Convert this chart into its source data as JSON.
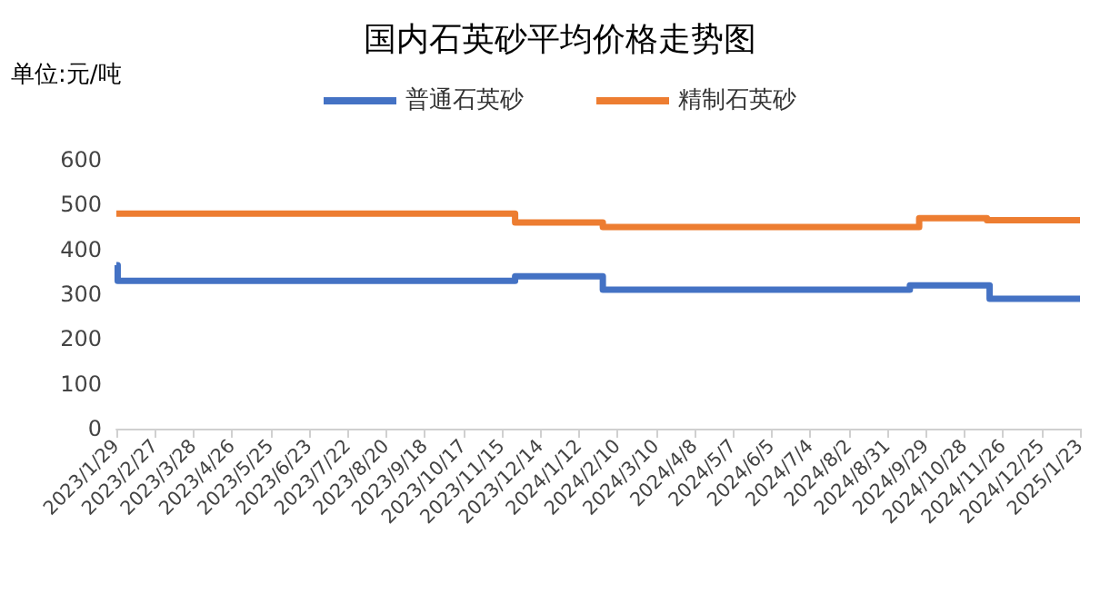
{
  "chart_data": {
    "type": "step",
    "title": "国内石英砂平均价格走势图",
    "ylabel": "单位:元/吨",
    "legend": "top",
    "grid": false,
    "marker": "none",
    "xlim": [
      "2023-01-29",
      "2025-01-23"
    ],
    "xticks": [
      {
        "value": "2023-01-29",
        "label": "2023/1/29"
      },
      {
        "value": "2023-02-27",
        "label": "2023/2/27"
      },
      {
        "value": "2023-03-28",
        "label": "2023/3/28"
      },
      {
        "value": "2023-04-26",
        "label": "2023/4/26"
      },
      {
        "value": "2023-05-25",
        "label": "2023/5/25"
      },
      {
        "value": "2023-06-23",
        "label": "2023/6/23"
      },
      {
        "value": "2023-07-22",
        "label": "2023/7/22"
      },
      {
        "value": "2023-08-20",
        "label": "2023/8/20"
      },
      {
        "value": "2023-09-18",
        "label": "2023/9/18"
      },
      {
        "value": "2023-10-17",
        "label": "2023/10/17"
      },
      {
        "value": "2023-11-15",
        "label": "2023/11/15"
      },
      {
        "value": "2023-12-14",
        "label": "2023/12/14"
      },
      {
        "value": "2024-01-12",
        "label": "2024/1/12"
      },
      {
        "value": "2024-02-10",
        "label": "2024/2/10"
      },
      {
        "value": "2024-03-10",
        "label": "2024/3/10"
      },
      {
        "value": "2024-04-08",
        "label": "2024/4/8"
      },
      {
        "value": "2024-05-07",
        "label": "2024/5/7"
      },
      {
        "value": "2024-06-05",
        "label": "2024/6/5"
      },
      {
        "value": "2024-07-04",
        "label": "2024/7/4"
      },
      {
        "value": "2024-08-02",
        "label": "2024/8/2"
      },
      {
        "value": "2024-08-31",
        "label": "2024/8/31"
      },
      {
        "value": "2024-09-29",
        "label": "2024/9/29"
      },
      {
        "value": "2024-10-28",
        "label": "2024/10/28"
      },
      {
        "value": "2024-11-26",
        "label": "2024/11/26"
      },
      {
        "value": "2024-12-25",
        "label": "2024/12/25"
      },
      {
        "value": "2025-01-23",
        "label": "2025/1/23"
      }
    ],
    "ylim": [
      0,
      600
    ],
    "yticks": [
      0,
      100,
      200,
      300,
      400,
      500,
      600
    ],
    "series": [
      {
        "name": "普通石英砂",
        "color": "#4472c4",
        "x": [
          "2023-01-29",
          "2023-01-30",
          "2023-11-25",
          "2024-01-30",
          "2024-09-17",
          "2024-11-16",
          "2025-01-23"
        ],
        "values": [
          365,
          330,
          340,
          310,
          320,
          290,
          290
        ]
      },
      {
        "name": "精制石英砂",
        "color": "#ed7d31",
        "x": [
          "2023-01-29",
          "2023-11-25",
          "2024-01-30",
          "2024-09-24",
          "2024-11-14",
          "2025-01-23"
        ],
        "values": [
          480,
          460,
          450,
          470,
          465,
          465
        ]
      }
    ]
  }
}
